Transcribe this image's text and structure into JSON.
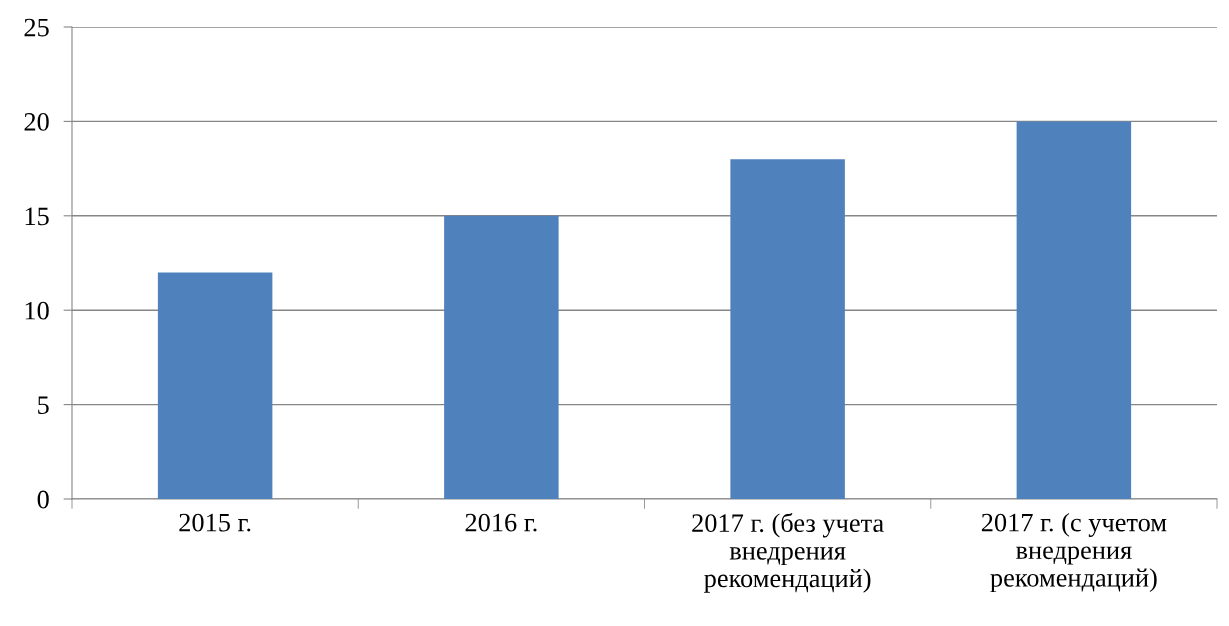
{
  "chart_data": {
    "type": "bar",
    "categories": [
      "2015 г.",
      "2016 г.",
      "2017 г. (без учета\nвнедрения\nрекомендаций)",
      "2017 г. (с учетом\nвнедрения\nрекомендаций)"
    ],
    "values": [
      12,
      15,
      18,
      20
    ],
    "color": "#4f81bd",
    "ylim": [
      0,
      25
    ],
    "yticks": [
      0,
      5,
      10,
      15,
      20,
      25
    ],
    "grid": "y",
    "legend": false
  }
}
